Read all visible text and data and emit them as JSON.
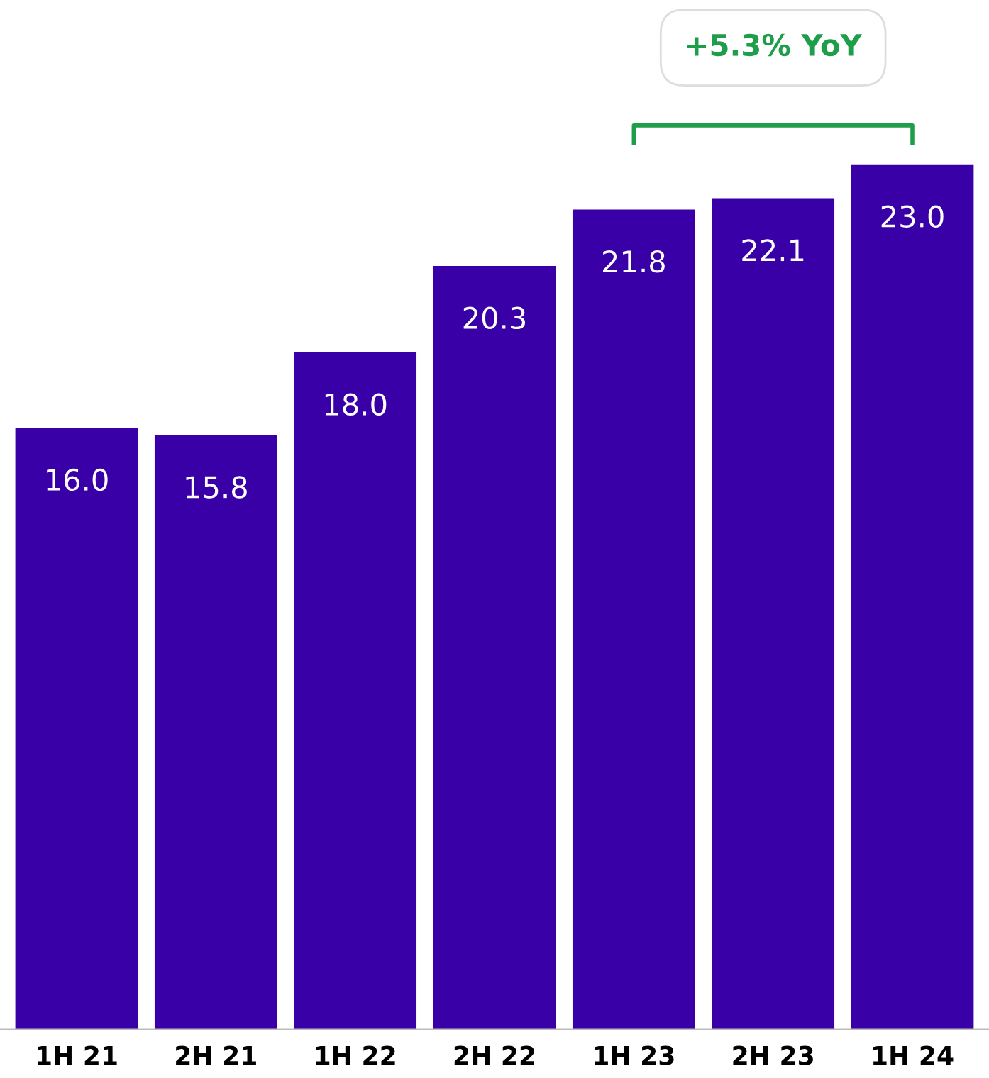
{
  "chart_data": {
    "type": "bar",
    "categories": [
      "1H 21",
      "2H 21",
      "1H 22",
      "2H 22",
      "1H 23",
      "2H 23",
      "1H 24"
    ],
    "values": [
      16.0,
      15.8,
      18.0,
      20.3,
      21.8,
      22.1,
      23.0
    ],
    "color": "#3a00a8",
    "value_labels": [
      "16.0",
      "15.8",
      "18.0",
      "20.3",
      "21.8",
      "22.1",
      "23.0"
    ],
    "grid": false,
    "legend": false,
    "annotations": [
      "+5.3% YoY"
    ]
  }
}
